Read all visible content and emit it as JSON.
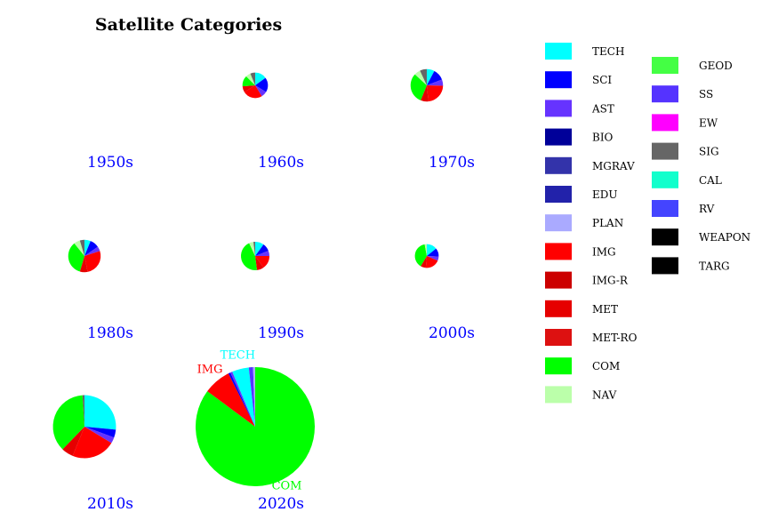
{
  "chart_data": {
    "type": "pie",
    "title": "Satellite Categories",
    "legend_placement": "right",
    "categories": [
      {
        "name": "TECH",
        "color": "#00ffff"
      },
      {
        "name": "SCI",
        "color": "#0000ff"
      },
      {
        "name": "AST",
        "color": "#6633ff"
      },
      {
        "name": "BIO",
        "color": "#000099"
      },
      {
        "name": "MGRAV",
        "color": "#3333aa"
      },
      {
        "name": "EDU",
        "color": "#2222aa"
      },
      {
        "name": "PLAN",
        "color": "#aaaaff"
      },
      {
        "name": "IMG",
        "color": "#ff0000"
      },
      {
        "name": "IMG-R",
        "color": "#cc0000"
      },
      {
        "name": "MET",
        "color": "#e60000"
      },
      {
        "name": "MET-RO",
        "color": "#dd1111"
      },
      {
        "name": "COM",
        "color": "#00ff00"
      },
      {
        "name": "NAV",
        "color": "#bbffaa"
      },
      {
        "name": "GEOD",
        "color": "#44ff44"
      },
      {
        "name": "SS",
        "color": "#5533ff"
      },
      {
        "name": "EW",
        "color": "#ff00ff"
      },
      {
        "name": "SIG",
        "color": "#666666"
      },
      {
        "name": "CAL",
        "color": "#11ffcc"
      },
      {
        "name": "RV",
        "color": "#4444ff"
      },
      {
        "name": "WEAPON",
        "color": "#000000"
      },
      {
        "name": "TARG",
        "color": "#000000"
      }
    ],
    "pies": [
      {
        "label": "1950s",
        "total": 0,
        "slices": []
      },
      {
        "label": "1960s",
        "total": 800,
        "slices": [
          {
            "category": "TECH",
            "value": 120
          },
          {
            "category": "SCI",
            "value": 150
          },
          {
            "category": "AST",
            "value": 60
          },
          {
            "category": "IMG",
            "value": 200
          },
          {
            "category": "MET",
            "value": 60
          },
          {
            "category": "COM",
            "value": 110
          },
          {
            "category": "NAV",
            "value": 50
          },
          {
            "category": "SIG",
            "value": 50
          }
        ]
      },
      {
        "label": "1970s",
        "total": 1300,
        "slices": [
          {
            "category": "TECH",
            "value": 100
          },
          {
            "category": "SCI",
            "value": 150
          },
          {
            "category": "AST",
            "value": 80
          },
          {
            "category": "IMG",
            "value": 300
          },
          {
            "category": "MET",
            "value": 100
          },
          {
            "category": "COM",
            "value": 400
          },
          {
            "category": "NAV",
            "value": 80
          },
          {
            "category": "SIG",
            "value": 90
          }
        ]
      },
      {
        "label": "1980s",
        "total": 1300,
        "slices": [
          {
            "category": "TECH",
            "value": 80
          },
          {
            "category": "SCI",
            "value": 120
          },
          {
            "category": "AST",
            "value": 60
          },
          {
            "category": "IMG",
            "value": 350
          },
          {
            "category": "MET",
            "value": 100
          },
          {
            "category": "COM",
            "value": 450
          },
          {
            "category": "NAV",
            "value": 80
          },
          {
            "category": "SIG",
            "value": 60
          }
        ]
      },
      {
        "label": "1990s",
        "total": 1000,
        "slices": [
          {
            "category": "TECH",
            "value": 100
          },
          {
            "category": "SCI",
            "value": 90
          },
          {
            "category": "AST",
            "value": 60
          },
          {
            "category": "IMG",
            "value": 150
          },
          {
            "category": "MET",
            "value": 80
          },
          {
            "category": "COM",
            "value": 450
          },
          {
            "category": "NAV",
            "value": 50
          },
          {
            "category": "SIG",
            "value": 20
          }
        ]
      },
      {
        "label": "2000s",
        "total": 700,
        "slices": [
          {
            "category": "TECH",
            "value": 100
          },
          {
            "category": "SCI",
            "value": 80
          },
          {
            "category": "AST",
            "value": 40
          },
          {
            "category": "IMG",
            "value": 140
          },
          {
            "category": "MET",
            "value": 50
          },
          {
            "category": "COM",
            "value": 270
          },
          {
            "category": "NAV",
            "value": 20
          }
        ]
      },
      {
        "label": "2010s",
        "total": 4900,
        "slices": [
          {
            "category": "TECH",
            "value": 1300
          },
          {
            "category": "SCI",
            "value": 200
          },
          {
            "category": "AST",
            "value": 150
          },
          {
            "category": "IMG",
            "value": 1100
          },
          {
            "category": "MET",
            "value": 300
          },
          {
            "category": "COM",
            "value": 1800
          },
          {
            "category": "SIG",
            "value": 50
          }
        ]
      },
      {
        "label": "2020s",
        "total": 17500,
        "slices": [
          {
            "category": "COM",
            "value": 14900
          },
          {
            "category": "IMG",
            "value": 1300
          },
          {
            "category": "SCI",
            "value": 100
          },
          {
            "category": "AST",
            "value": 100
          },
          {
            "category": "TECH",
            "value": 800
          },
          {
            "category": "SS",
            "value": 200
          },
          {
            "category": "PLAN",
            "value": 100
          }
        ],
        "slice_labels": [
          "IMG",
          "TECH",
          "COM"
        ]
      }
    ]
  }
}
